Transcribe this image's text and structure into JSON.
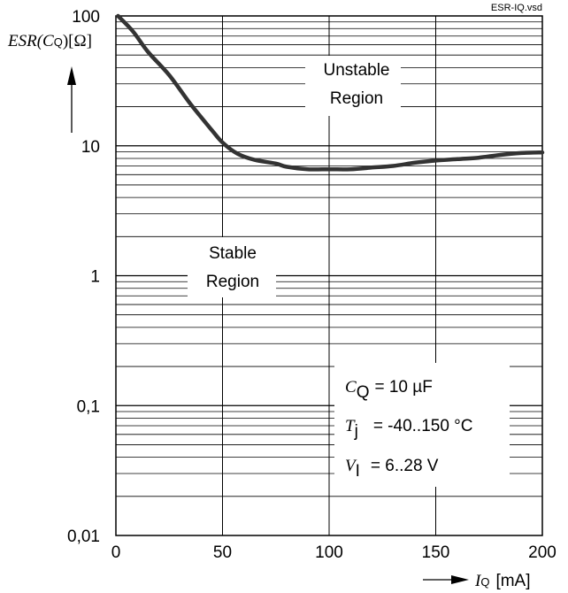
{
  "chart_data": {
    "type": "line",
    "title": "",
    "file_label": "ESR-IQ.vsd",
    "x_axis": {
      "label_symbol": "I",
      "label_subscript": "Q",
      "label_unit": "[mA]",
      "range": [
        0,
        200
      ],
      "ticks": [
        0,
        50,
        100,
        150,
        200
      ],
      "tick_labels": [
        "0",
        "50",
        "100",
        "150",
        "200"
      ]
    },
    "y_axis": {
      "label_prefix": "ESR(C",
      "label_subscript": "Q",
      "label_suffix": ")[Ω]",
      "scale": "log",
      "range": [
        0.01,
        100
      ],
      "ticks": [
        0.01,
        0.1,
        1,
        10,
        100
      ],
      "tick_labels": [
        "0,01",
        "0,1",
        "1",
        "10",
        "100"
      ]
    },
    "grid": true,
    "series": [
      {
        "color": "#333333",
        "x": [
          1,
          8,
          15,
          25,
          35,
          45,
          50,
          57,
          65,
          75,
          80,
          90,
          100,
          110,
          120,
          130,
          140,
          150,
          160,
          170,
          180,
          190,
          200
        ],
        "y": [
          100,
          76,
          53,
          35,
          21,
          13.2,
          10.6,
          8.7,
          7.8,
          7.3,
          6.9,
          6.6,
          6.6,
          6.6,
          6.8,
          7.0,
          7.4,
          7.7,
          7.9,
          8.1,
          8.5,
          8.8,
          8.9
        ]
      }
    ],
    "annotations": {
      "unstable_line1": "Unstable",
      "unstable_line2": "Region",
      "stable_line1": "Stable",
      "stable_line2": "Region",
      "params": [
        {
          "symbol": "C",
          "sub": "Q",
          "value": "= 10 µF"
        },
        {
          "symbol": "T",
          "sub": "j",
          "value": "= -40..150 °C"
        },
        {
          "symbol": "V",
          "sub": "I",
          "value": "= 6..28 V"
        }
      ]
    }
  }
}
